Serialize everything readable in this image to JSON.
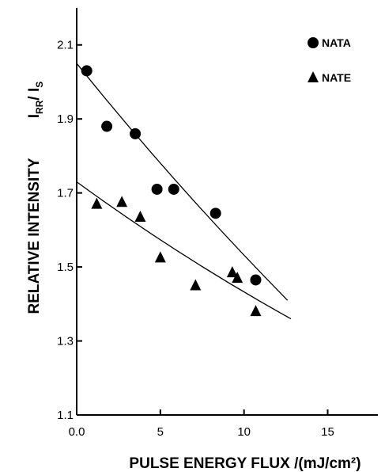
{
  "chart_data": {
    "type": "scatter",
    "xlabel": "PULSE ENERGY FLUX /(mJ/cm²)",
    "ylabel_main": "RELATIVE INTENSITY",
    "ylabel_ratio": "I",
    "ylabel_ratio_sub1": "RR",
    "ylabel_ratio_mid": "/ I",
    "ylabel_ratio_sub2": "S",
    "xlim": [
      0,
      18
    ],
    "ylim": [
      1.1,
      2.2
    ],
    "xticks": [
      0.0,
      5,
      10,
      15
    ],
    "xtick_labels": [
      "0.0",
      "5",
      "10",
      "15"
    ],
    "yticks": [
      1.1,
      1.3,
      1.5,
      1.7,
      1.9,
      2.1
    ],
    "ytick_labels": [
      "1.1",
      "1.3",
      "1.5",
      "1.7",
      "1.9",
      "2.1"
    ],
    "legend_position": "top-right",
    "series": [
      {
        "name": "NATA",
        "marker": "circle",
        "x": [
          0.6,
          1.8,
          3.5,
          4.8,
          5.8,
          8.3,
          10.7
        ],
        "y": [
          2.03,
          1.88,
          1.86,
          1.71,
          1.71,
          1.645,
          1.465
        ],
        "fit_x": [
          0.0,
          12.6
        ],
        "fit_y": [
          2.05,
          1.41
        ]
      },
      {
        "name": "NATE",
        "marker": "triangle",
        "x": [
          1.2,
          2.7,
          3.8,
          5.0,
          7.1,
          9.3,
          9.6,
          10.7
        ],
        "y": [
          1.67,
          1.675,
          1.635,
          1.525,
          1.45,
          1.485,
          1.47,
          1.38
        ],
        "fit_x": [
          0.0,
          12.8
        ],
        "fit_y": [
          1.73,
          1.36
        ]
      }
    ]
  }
}
